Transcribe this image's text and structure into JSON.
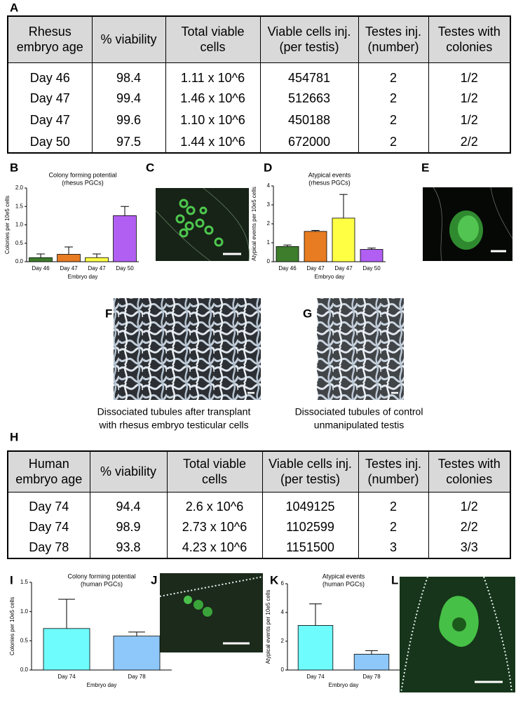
{
  "panel_labels": [
    "A",
    "B",
    "C",
    "D",
    "E",
    "F",
    "G",
    "H",
    "I",
    "J",
    "K",
    "L"
  ],
  "tables": [
    {
      "header": [
        "Rhesus embryo age",
        "% viability",
        "Total viable cells",
        "Viable cells inj. (per testis)",
        "Testes inj. (number)",
        "Testes with colonies"
      ],
      "rows": [
        [
          "Day 46",
          "98.4",
          "1.11 x 10^6",
          "454781",
          "2",
          "1/2"
        ],
        [
          "Day 47",
          "99.4",
          "1.46 x 10^6",
          "512663",
          "2",
          "1/2"
        ],
        [
          "Day 47",
          "99.6",
          "1.10 x 10^6",
          "450188",
          "2",
          "1/2"
        ],
        [
          "Day 50",
          "97.5",
          "1.44 x 10^6",
          "672000",
          "2",
          "2/2"
        ]
      ]
    },
    {
      "header": [
        "Human embryo age",
        "% viability",
        "Total viable cells",
        "Viable cells inj. (per testis)",
        "Testes inj. (number)",
        "Testes with colonies"
      ],
      "rows": [
        [
          "Day 74",
          "94.4",
          "2.6 x 10^6",
          "1049125",
          "2",
          "1/2"
        ],
        [
          "Day 74",
          "98.9",
          "2.73 x 10^6",
          "1102599",
          "2",
          "2/2"
        ],
        [
          "Day 78",
          "93.8",
          "4.23 x 10^6",
          "1151500",
          "3",
          "3/3"
        ]
      ]
    }
  ],
  "chart_data": [
    {
      "type": "bar",
      "title": "Colony forming potential",
      "subtitle": "(rhesus PGCs)",
      "y_label": "Colonies per 10e5 cells",
      "x_label": "Embryo day",
      "categories": [
        "Day 46",
        "Day 47",
        "Day 47",
        "Day 50"
      ],
      "values": [
        0.11,
        0.2,
        0.11,
        1.25
      ],
      "errors": [
        0.1,
        0.2,
        0.1,
        0.25
      ],
      "colors": [
        "#3d7d2c",
        "#e77c22",
        "#ffff44",
        "#b15ff2"
      ],
      "ylim": [
        0,
        2
      ],
      "yticks": [
        {
          "value": 0,
          "label": "0.0"
        },
        0.5,
        {
          "value": 1,
          "label": "1.0"
        },
        1.5,
        {
          "value": 2,
          "label": "2.0"
        }
      ]
    },
    {
      "type": "bar",
      "title": "Atypical events",
      "subtitle": "(rhesus PGCs)",
      "y_label": "Atypical events per 10e5 cells",
      "x_label": "Embryo day",
      "categories": [
        "Day 46",
        "Day 47",
        "Day 47",
        "Day 50"
      ],
      "values": [
        0.8,
        1.6,
        2.3,
        0.65
      ],
      "errors": [
        0.08,
        0.05,
        1.25,
        0.07
      ],
      "colors": [
        "#3d7d2c",
        "#e77c22",
        "#ffff44",
        "#b15ff2"
      ],
      "ylim": [
        0,
        4
      ],
      "yticks": [
        0,
        1,
        2,
        3,
        4
      ]
    },
    {
      "type": "bar",
      "title": "Colony forming potential",
      "subtitle": "(human PGCs)",
      "y_label": "Colonies per 10e5 cells",
      "x_label": "Embryo day",
      "categories": [
        "Day 74",
        "Day 78"
      ],
      "values": [
        0.71,
        0.58
      ],
      "errors": [
        0.5,
        0.07
      ],
      "colors": [
        "#6ffcfc",
        "#8ec8fb"
      ],
      "ylim": [
        0,
        1.5
      ],
      "yticks": [
        {
          "value": 0,
          "label": "0.0"
        },
        0.5,
        {
          "value": 1,
          "label": "1.0"
        },
        1.5
      ]
    },
    {
      "type": "bar",
      "title": "Atypical events",
      "subtitle": "(human PGCs)",
      "y_label": "Atypical events per 10e5 cells",
      "x_label": "Embryo day",
      "categories": [
        "Day 74",
        "Day 78"
      ],
      "values": [
        3.1,
        1.1
      ],
      "errors": [
        1.5,
        0.25
      ],
      "colors": [
        "#6ffcfc",
        "#8ec8fb"
      ],
      "ylim": [
        0,
        6
      ],
      "yticks": [
        0,
        2,
        4,
        6
      ]
    }
  ],
  "captions": [
    [
      "Dissociated tubules after transplant",
      "with rhesus embryo testicular cells"
    ],
    [
      "Dissociated tubules of control",
      "unmanipulated testis"
    ]
  ]
}
